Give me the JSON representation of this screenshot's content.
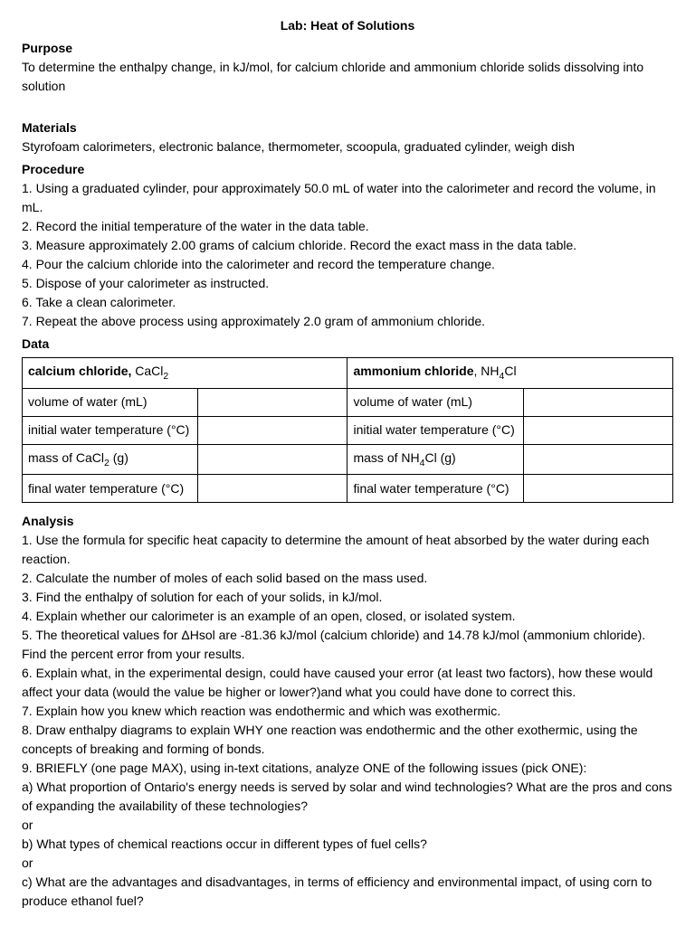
{
  "title": "Lab: Heat of Solutions",
  "purpose": {
    "head": "Purpose",
    "text": "To determine the enthalpy change, in kJ/mol, for calcium chloride and ammonium chloride solids dissolving into solution"
  },
  "materials": {
    "head": "Materials",
    "text": "Styrofoam calorimeters, electronic balance, thermometer, scoopula, graduated cylinder, weigh dish"
  },
  "procedure": {
    "head": "Procedure",
    "steps": [
      "1. Using a graduated cylinder, pour approximately 50.0 mL of water into the calorimeter and record the volume, in mL.",
      "2. Record the initial temperature of the water in the data table.",
      "3. Measure approximately 2.00 grams of calcium chloride.  Record the exact mass in the data table.",
      "4. Pour the calcium chloride into the calorimeter and record the temperature change.",
      "5. Dispose of your calorimeter as instructed.",
      "6. Take a clean calorimeter.",
      "7. Repeat the above process using approximately 2.0 gram of ammonium chloride."
    ]
  },
  "data": {
    "head": "Data",
    "left_header_prefix": "calcium chloride, ",
    "left_header_formula": "CaCl",
    "left_header_sub": "2",
    "right_header_prefix": "ammonium chloride",
    "right_header_formula": ", NH",
    "right_header_sub": "4",
    "right_header_tail": "Cl",
    "rows": {
      "r1_left": "volume of water (mL)",
      "r1_right": "volume of water (mL)",
      "r2_left": "initial water temperature  (°C)",
      "r2_right": "initial water temperature  (°C)",
      "r3_left_a": "mass of CaCl",
      "r3_left_sub": "2",
      "r3_left_b": " (g)",
      "r3_right_a": "mass of NH",
      "r3_right_sub": "4",
      "r3_right_b": "Cl (g)",
      "r4_left": "final water temperature (°C)",
      "r4_right": "final water temperature (°C)"
    }
  },
  "analysis": {
    "head": "Analysis",
    "items": [
      "1. Use the formula for specific heat capacity to determine the amount of heat absorbed by the water during each reaction.",
      "2. Calculate the number of moles of each solid based on the mass used.",
      "3. Find the enthalpy of solution for each of your solids, in kJ/mol.",
      "4. Explain whether our calorimeter is an example of an open, closed, or isolated system.",
      "5. The theoretical values for ΔHsol are -81.36 kJ/mol (calcium chloride) and 14.78 kJ/mol (ammonium chloride). Find the percent error from your results.",
      "6. Explain what, in the experimental design, could have caused your error (at least two factors), how these would affect your data (would the value be higher or lower?)and what you could have done to correct this.",
      "7. Explain how you knew which reaction was endothermic and which was exothermic.",
      "8. Draw enthalpy diagrams to explain WHY one reaction was endothermic and the other exothermic, using the concepts of breaking and forming of bonds.",
      "9. BRIEFLY (one page MAX), using in-text citations, analyze ONE of the following issues (pick ONE):",
      "a) What proportion of Ontario's energy needs is served by solar and wind technologies? What are the pros and cons of expanding the availability of these technologies?",
      "or",
      "b) What types of chemical reactions occur in different types of fuel cells?",
      "or",
      "c) What are the advantages and disadvantages, in terms of  efficiency and environmental impact, of using corn to produce ethanol fuel?"
    ]
  }
}
